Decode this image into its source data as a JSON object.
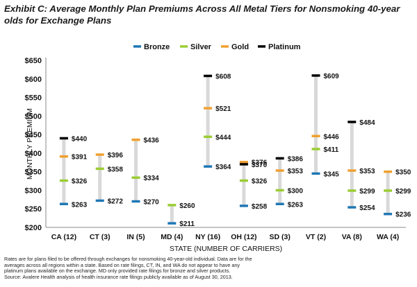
{
  "title": "Exhibit C: Average Monthly Plan Premiums Across All Metal Tiers for Nonsmoking 40-year olds for Exchange Plans",
  "footnote": [
    "Rates are for plans filed to be offered through exchanges for nonsmoking 40-year-old individual. Data are for the",
    "averages across all regions within a state. Based on rate filings, CT, IN, and WA do not appear to have any",
    "platinum plans available on the exchange. MD only provided rate filings for bronze and silver products.",
    "Source: Avalere Health analysis of health insurance rate filings publicly available as of August 30, 2013."
  ],
  "chart_data": {
    "type": "scatter",
    "xlabel": "STATE (NUMBER OF CARRIERS)",
    "ylabel": "MONTHLY PREMIUM",
    "ylim": [
      200,
      650
    ],
    "yticks": [
      "$200",
      "$250",
      "$300",
      "$350",
      "$400",
      "$450",
      "$500",
      "$550",
      "$600",
      "$650"
    ],
    "legend_position": "top",
    "categories": [
      "CA (12)",
      "CT (3)",
      "IN (5)",
      "MD (4)",
      "NY (16)",
      "OH (12)",
      "SD (3)",
      "VT (2)",
      "VA (8)",
      "WA (4)"
    ],
    "series": [
      {
        "name": "Bronze",
        "color": "#1f77b4",
        "values": [
          263,
          272,
          270,
          211,
          364,
          258,
          263,
          345,
          254,
          236
        ],
        "labels": [
          "$263",
          "$272",
          "$270",
          "$211",
          "$364",
          "$258",
          "$263",
          "$345",
          "$254",
          "$236"
        ]
      },
      {
        "name": "Silver",
        "color": "#9acd32",
        "values": [
          326,
          358,
          334,
          260,
          444,
          326,
          300,
          411,
          299,
          299
        ],
        "labels": [
          "$326",
          "$358",
          "$334",
          "$260",
          "$444",
          "$326",
          "$300",
          "$411",
          "$299",
          "$299"
        ]
      },
      {
        "name": "Gold",
        "color": "#f0a030",
        "values": [
          391,
          396,
          436,
          null,
          521,
          376,
          353,
          446,
          353,
          350
        ],
        "labels": [
          "$391",
          "$396",
          "$436",
          null,
          "$521",
          "$376",
          "$353",
          "$446",
          "$353",
          "$350"
        ]
      },
      {
        "name": "Platinum",
        "color": "#000000",
        "values": [
          440,
          null,
          null,
          null,
          608,
          370,
          386,
          609,
          484,
          null
        ],
        "labels": [
          "$440",
          null,
          null,
          null,
          "$608",
          "$370",
          "$386",
          "$609",
          "$484",
          null
        ]
      }
    ]
  }
}
